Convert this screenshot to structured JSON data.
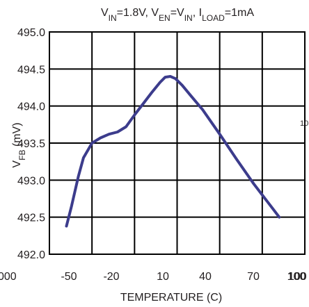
{
  "chart_data": {
    "type": "line",
    "title": {
      "parts": [
        {
          "t": "V"
        },
        {
          "t": "IN",
          "sub": true
        },
        {
          "t": "=1.8V, V"
        },
        {
          "t": "EN",
          "sub": true
        },
        {
          "t": "=V"
        },
        {
          "t": "IN",
          "sub": true
        },
        {
          "t": ", I"
        },
        {
          "t": "LOAD",
          "sub": true
        },
        {
          "t": "=1mA"
        }
      ]
    },
    "xlabel": "TEMPERATURE (C)",
    "ylabel": {
      "parts": [
        {
          "t": "V"
        },
        {
          "t": "FB",
          "sub": true
        },
        {
          "t": " (mV)"
        }
      ]
    },
    "x_ticks": [
      "-50",
      "-20",
      "10",
      "40",
      "70",
      "100"
    ],
    "x_cut_labels": [
      "000",
      "100",
      "10"
    ],
    "xlim": [
      -50,
      100
    ],
    "ylim": [
      492.0,
      495.0
    ],
    "y_ticks": [
      "495.0",
      "494.5",
      "494.0",
      "493.5",
      "493.0",
      "492.5",
      "492.0"
    ],
    "grid": true,
    "series": [
      {
        "color": "#3c3c8c",
        "points": [
          [
            -40,
            492.38
          ],
          [
            -37,
            492.65
          ],
          [
            -33,
            493.05
          ],
          [
            -30,
            493.3
          ],
          [
            -25,
            493.5
          ],
          [
            -20,
            493.57
          ],
          [
            -15,
            493.62
          ],
          [
            -10,
            493.65
          ],
          [
            -5,
            493.72
          ],
          [
            0,
            493.88
          ],
          [
            5,
            494.03
          ],
          [
            10,
            494.18
          ],
          [
            15,
            494.32
          ],
          [
            18,
            494.39
          ],
          [
            21,
            494.4
          ],
          [
            24,
            494.37
          ],
          [
            28,
            494.28
          ],
          [
            33,
            494.14
          ],
          [
            40,
            493.95
          ],
          [
            50,
            493.62
          ],
          [
            60,
            493.28
          ],
          [
            70,
            492.95
          ],
          [
            80,
            492.65
          ],
          [
            85,
            492.5
          ]
        ]
      }
    ]
  }
}
